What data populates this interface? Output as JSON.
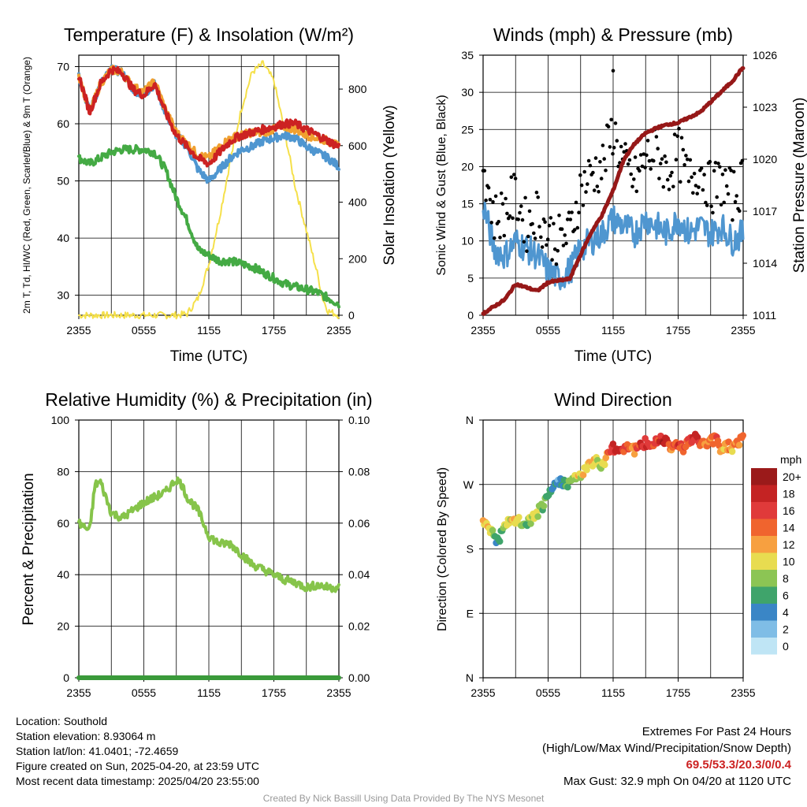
{
  "colors": {
    "temp": "#cc2222",
    "hiwc": "#ff8844",
    "dew": "#44aa44",
    "nine_m": "#f0a030",
    "wind": "#4f96d0",
    "gust": "#000000",
    "pressure": "#961818",
    "solar": "#f5e04a",
    "rh": "#86c44a",
    "precip": "#3a9a3a"
  },
  "wind_colorbar": {
    "unit": "mph",
    "labels": [
      "20+",
      "18",
      "16",
      "14",
      "12",
      "10",
      "8",
      "6",
      "4",
      "2",
      "0"
    ],
    "colors": [
      "#9b1a1a",
      "#c42323",
      "#e03a3a",
      "#f0642e",
      "#f7a040",
      "#e8dc50",
      "#8cc554",
      "#3fa46b",
      "#3a86c6",
      "#7fbde6",
      "#bfe5f5"
    ]
  },
  "chart_data": [
    {
      "type": "line",
      "title": "Temperature (F) & Insolation (W/m²)",
      "xlabel": "Time (UTC)",
      "ylabel": "2m T, Td, HI/WC (Red, Green, Scarlet/Blue) & 9m T (Orange)",
      "ylabel_right": "Solar Insolation (Yellow)",
      "x_ticks": [
        "2355",
        "0555",
        "1155",
        "1755",
        "2355"
      ],
      "ylim": [
        26.5,
        72
      ],
      "y_ticks": [
        30,
        40,
        50,
        60,
        70
      ],
      "ylim_right": [
        0,
        920
      ],
      "y_ticks_right": [
        0,
        200,
        400,
        600,
        800
      ],
      "x_hours": [
        0,
        1,
        2,
        3,
        4,
        5,
        6,
        7,
        8,
        9,
        10,
        11,
        12,
        13,
        14,
        15,
        16,
        17,
        18,
        19,
        20,
        21,
        22,
        23,
        24
      ],
      "series": [
        {
          "name": "2m T",
          "values": [
            68.5,
            62,
            67,
            69.5,
            69,
            66,
            65,
            67,
            62,
            58,
            56,
            54,
            53,
            55,
            57,
            58,
            58.5,
            59,
            59.5,
            60,
            60,
            59,
            58,
            57,
            56
          ]
        },
        {
          "name": "HI/WC",
          "values": [
            68.5,
            62,
            67,
            69.5,
            69,
            66,
            65,
            67,
            62,
            58,
            56,
            52,
            50,
            52,
            54,
            55.5,
            56,
            57,
            57.5,
            58,
            57.5,
            56,
            55,
            54,
            52.5
          ]
        },
        {
          "name": "Td",
          "values": [
            54,
            53,
            54,
            55,
            55.5,
            55.5,
            55.5,
            55,
            52,
            47,
            43,
            38,
            37,
            36,
            36,
            35.5,
            35,
            34,
            33,
            32,
            31.5,
            31,
            30.5,
            29.5,
            28.5
          ]
        },
        {
          "name": "9m T",
          "values": [
            68.5,
            62,
            67,
            69.5,
            69,
            66.5,
            65.5,
            67.5,
            62.5,
            58.5,
            56.5,
            54.5,
            54,
            56,
            57.5,
            58,
            58.5,
            58.5,
            59,
            59.5,
            59,
            58,
            57.5,
            57,
            56
          ]
        }
      ],
      "solar": {
        "x_hours": [
          0,
          8,
          9,
          10,
          11,
          12,
          13,
          14,
          15,
          16,
          17,
          18,
          19,
          20,
          21,
          22,
          22.5,
          23,
          24
        ],
        "values": [
          0,
          0,
          0,
          5,
          60,
          180,
          350,
          550,
          730,
          860,
          890,
          830,
          650,
          450,
          300,
          150,
          60,
          15,
          0
        ]
      }
    },
    {
      "type": "line",
      "title": "Winds (mph) & Pressure (mb)",
      "xlabel": "Time (UTC)",
      "ylabel": "Sonic Wind & Gust (Blue, Black)",
      "ylabel_right": "Station Pressure (Maroon)",
      "x_ticks": [
        "2355",
        "0555",
        "1155",
        "1755",
        "2355"
      ],
      "ylim": [
        0,
        35
      ],
      "y_ticks": [
        0,
        5,
        10,
        15,
        20,
        25,
        30,
        35
      ],
      "ylim_right": [
        1011,
        1026
      ],
      "y_ticks_right": [
        1011,
        1014,
        1017,
        1020,
        1023,
        1026
      ],
      "x_hours": [
        0,
        1,
        2,
        3,
        4,
        5,
        6,
        7,
        8,
        9,
        10,
        11,
        12,
        13,
        14,
        15,
        16,
        17,
        18,
        19,
        20,
        21,
        22,
        23,
        24
      ],
      "series": [
        {
          "name": "Sonic Wind",
          "values": [
            15,
            9,
            8,
            10,
            9,
            8,
            6,
            5,
            6,
            9,
            10,
            11,
            13,
            12,
            11,
            13,
            12,
            11,
            13,
            11,
            12,
            11,
            12,
            10,
            11
          ]
        },
        {
          "name": "Gust",
          "values": [
            21,
            13,
            14,
            16,
            12,
            14,
            11,
            10,
            11,
            17,
            19,
            20,
            25,
            20,
            18,
            21,
            22,
            19,
            22,
            18,
            20,
            17,
            18,
            16,
            18
          ]
        },
        {
          "name": "Pressure",
          "values": [
            1011.1,
            1011.5,
            1011.9,
            1012.8,
            1012.6,
            1012.4,
            1012.9,
            1013,
            1013.1,
            1014.5,
            1015.8,
            1016.8,
            1018.2,
            1020,
            1020.9,
            1021.5,
            1021.8,
            1022,
            1022.1,
            1022.4,
            1022.7,
            1023.3,
            1023.9,
            1024.5,
            1025.3
          ]
        }
      ],
      "max_gust": {
        "x_hour": 12,
        "value": 32.9
      }
    },
    {
      "type": "line",
      "title": "Relative Humidity (%) & Precipitation (in)",
      "xlabel": "",
      "ylabel": "Percent & Precipitation",
      "x_ticks": [
        "2355",
        "0555",
        "1155",
        "1755",
        "2355"
      ],
      "ylim": [
        0,
        100
      ],
      "y_ticks": [
        0,
        20,
        40,
        60,
        80,
        100
      ],
      "ylim_right": [
        0,
        0.1
      ],
      "y_ticks_right": [
        "0.00",
        "0.02",
        "0.04",
        "0.06",
        "0.08",
        "0.10"
      ],
      "x_hours": [
        0,
        1,
        1.5,
        2,
        3,
        4,
        5,
        6,
        7,
        8,
        9,
        9.5,
        10,
        11,
        12,
        13,
        14,
        15,
        16,
        17,
        18,
        19,
        20,
        21,
        22,
        23,
        24
      ],
      "series": [
        {
          "name": "RH",
          "values": [
            60,
            57,
            75,
            76,
            64,
            62,
            65,
            68,
            70,
            72,
            77,
            75,
            70,
            65,
            55,
            52,
            52,
            48,
            44,
            42,
            40,
            38,
            37,
            35,
            36,
            35,
            35
          ]
        },
        {
          "name": "Precipitation",
          "values": [
            0,
            0,
            0,
            0,
            0,
            0,
            0,
            0,
            0,
            0,
            0,
            0,
            0,
            0,
            0,
            0,
            0,
            0,
            0,
            0,
            0,
            0,
            0,
            0,
            0,
            0,
            0
          ]
        }
      ]
    },
    {
      "type": "scatter",
      "title": "Wind Direction",
      "xlabel": "",
      "ylabel": "Direction (Colored By Speed)",
      "x_ticks": [
        "2355",
        "0555",
        "1155",
        "1755",
        "2355"
      ],
      "ylim": [
        0,
        360
      ],
      "y_ticks": [
        "N",
        "E",
        "S",
        "W",
        "N"
      ],
      "x_hours": [
        0,
        0.5,
        1,
        1.3,
        1.6,
        2,
        2.5,
        3,
        3.5,
        4,
        4.5,
        5,
        5.5,
        6,
        6.5,
        7,
        7.5,
        8,
        8.5,
        9,
        9.5,
        10,
        10.5,
        11,
        11.5,
        12,
        12.5,
        13,
        13.5,
        14,
        14.5,
        15,
        15.5,
        16,
        16.5,
        17,
        17.5,
        18,
        18.5,
        19,
        19.5,
        20,
        20.5,
        21,
        21.5,
        22,
        22.5,
        23,
        23.5,
        24
      ],
      "directions": [
        215,
        212,
        200,
        190,
        198,
        210,
        218,
        220,
        216,
        214,
        222,
        230,
        240,
        250,
        268,
        272,
        275,
        270,
        280,
        283,
        290,
        300,
        305,
        295,
        315,
        320,
        318,
        322,
        325,
        318,
        322,
        328,
        325,
        330,
        335,
        332,
        320,
        328,
        322,
        330,
        335,
        330,
        325,
        330,
        335,
        318,
        325,
        322,
        328,
        338
      ],
      "speeds": [
        12,
        11,
        8,
        5,
        6,
        9,
        10,
        11,
        9,
        7,
        9,
        8,
        7,
        6,
        5,
        4,
        6,
        8,
        9,
        10,
        11,
        12,
        10,
        9,
        14,
        17,
        18,
        16,
        15,
        13,
        17,
        18,
        16,
        14,
        18,
        17,
        13,
        16,
        15,
        14,
        17,
        15,
        12,
        14,
        16,
        11,
        13,
        12,
        14,
        13
      ]
    }
  ],
  "info": {
    "location": "Location: Southold",
    "elevation": "Station elevation: 8.93064 m",
    "latlon": "Station lat/lon: 41.0401; -72.4659",
    "created": "Figure created on Sun, 2025-04-20, at 23:59 UTC",
    "recent": "Most recent data timestamp: 2025/04/20 23:55:00"
  },
  "extremes": {
    "title": "Extremes For Past 24 Hours",
    "subtitle": "(High/Low/Max Wind/Precipitation/Snow Depth)",
    "values": "69.5/53.3/20.3/0/0.4",
    "max_gust": "Max Gust: 32.9 mph On 04/20 at 1120 UTC"
  },
  "credit": "Created By Nick Bassill Using Data Provided By The NYS Mesonet"
}
